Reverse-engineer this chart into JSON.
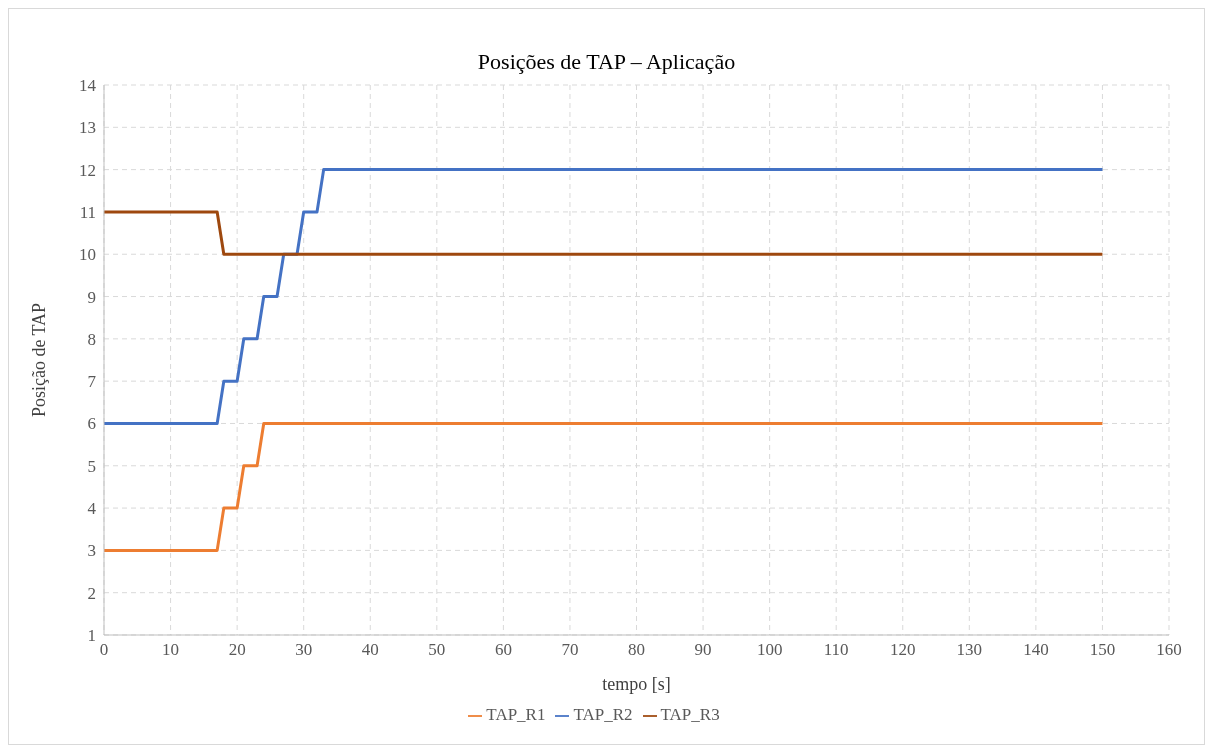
{
  "chart_data": {
    "type": "line",
    "title": "Posições de TAP – Aplicação",
    "xlabel": "tempo [s]",
    "ylabel": "Posição de TAP",
    "xlim": [
      0,
      160
    ],
    "xticks": [
      0,
      10,
      20,
      30,
      40,
      50,
      60,
      70,
      80,
      90,
      100,
      110,
      120,
      130,
      140,
      150,
      160
    ],
    "ylim": [
      1,
      14
    ],
    "yticks": [
      1,
      2,
      3,
      4,
      5,
      6,
      7,
      8,
      9,
      10,
      11,
      12,
      13,
      14
    ],
    "grid": true,
    "legend": "bottom",
    "marker": "none",
    "line_style": "solid",
    "series": [
      {
        "name": "TAP_R1",
        "color": "#ed7d31",
        "x": [
          0,
          17,
          18,
          20,
          21,
          23,
          24,
          150
        ],
        "values": [
          3,
          3,
          4,
          4,
          5,
          5,
          6,
          6
        ]
      },
      {
        "name": "TAP_R2",
        "color": "#4472c4",
        "x": [
          0,
          17,
          18,
          20,
          21,
          23,
          24,
          26,
          27,
          29,
          30,
          32,
          33,
          150
        ],
        "values": [
          6,
          6,
          7,
          7,
          8,
          8,
          9,
          9,
          10,
          10,
          11,
          11,
          12,
          12
        ]
      },
      {
        "name": "TAP_R3",
        "color": "#9e480e",
        "x": [
          0,
          17,
          18,
          150
        ],
        "values": [
          11,
          11,
          10,
          10
        ]
      }
    ]
  }
}
